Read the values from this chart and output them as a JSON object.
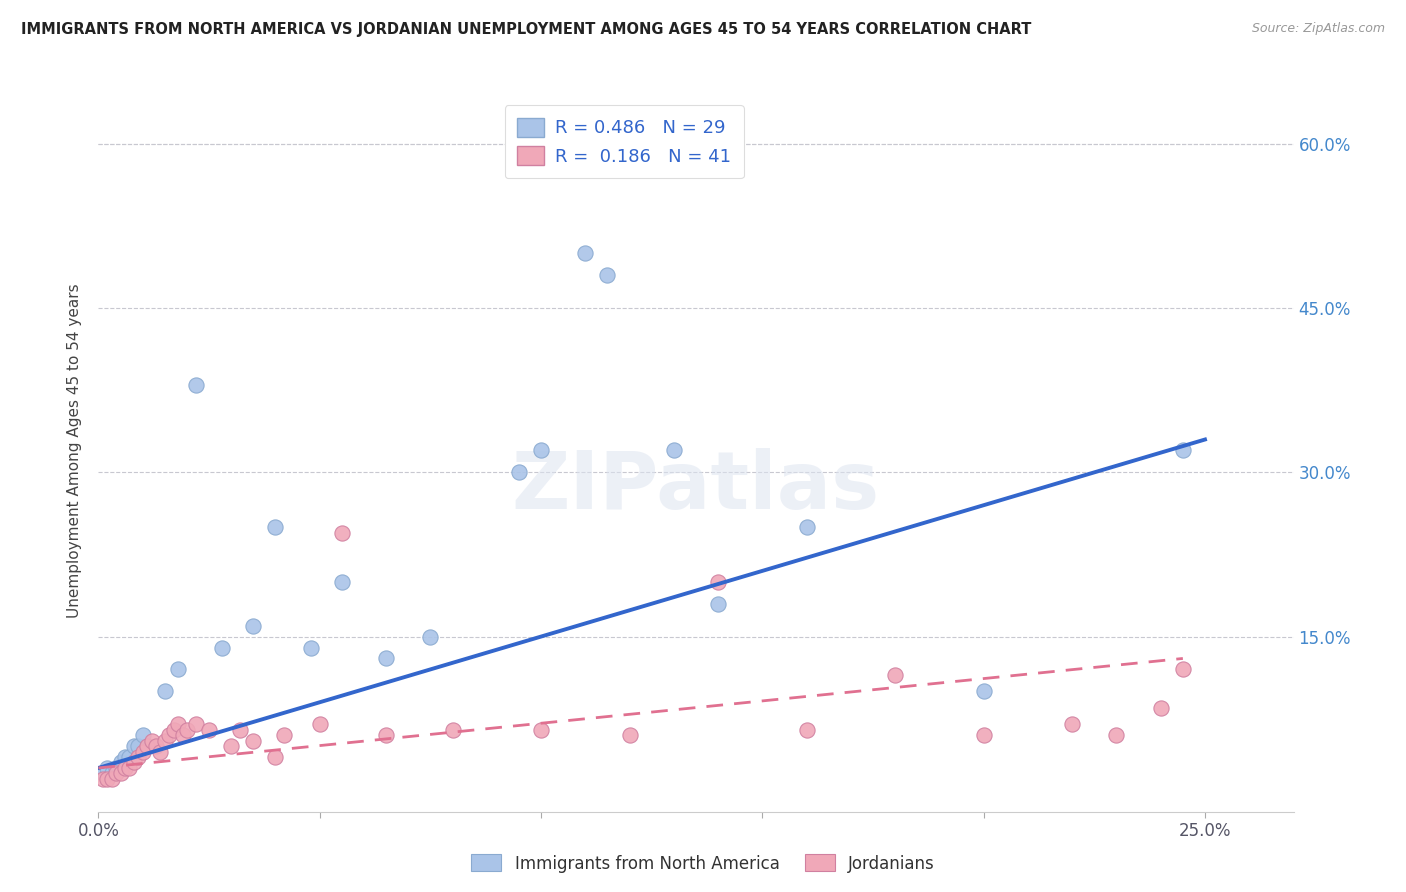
{
  "title": "IMMIGRANTS FROM NORTH AMERICA VS JORDANIAN UNEMPLOYMENT AMONG AGES 45 TO 54 YEARS CORRELATION CHART",
  "source": "Source: ZipAtlas.com",
  "ylabel": "Unemployment Among Ages 45 to 54 years",
  "xlim": [
    0.0,
    0.27
  ],
  "ylim": [
    -0.01,
    0.65
  ],
  "xticks": [
    0.0,
    0.05,
    0.1,
    0.15,
    0.2,
    0.25
  ],
  "xtick_labels": [
    "0.0%",
    "",
    "",
    "",
    "",
    "25.0%"
  ],
  "yticks_right": [
    0.0,
    0.15,
    0.3,
    0.45,
    0.6
  ],
  "ytick_labels_right": [
    "",
    "15.0%",
    "30.0%",
    "45.0%",
    "60.0%"
  ],
  "background_color": "#ffffff",
  "grid_color": "#c8c8d0",
  "watermark": "ZIPatlas",
  "legend_R1": "0.486",
  "legend_N1": "29",
  "legend_R2": "0.186",
  "legend_N2": "41",
  "series1_color": "#aac4e8",
  "series2_color": "#f0a8b8",
  "line1_color": "#3366cc",
  "line2_color": "#e07090",
  "scatter1_x": [
    0.001,
    0.002,
    0.003,
    0.004,
    0.005,
    0.006,
    0.007,
    0.008,
    0.009,
    0.01,
    0.015,
    0.018,
    0.022,
    0.028,
    0.035,
    0.04,
    0.048,
    0.055,
    0.065,
    0.075,
    0.095,
    0.1,
    0.11,
    0.115,
    0.13,
    0.14,
    0.16,
    0.2,
    0.245
  ],
  "scatter1_y": [
    0.025,
    0.03,
    0.025,
    0.03,
    0.035,
    0.04,
    0.04,
    0.05,
    0.05,
    0.06,
    0.1,
    0.12,
    0.38,
    0.14,
    0.16,
    0.25,
    0.14,
    0.2,
    0.13,
    0.15,
    0.3,
    0.32,
    0.5,
    0.48,
    0.32,
    0.18,
    0.25,
    0.1,
    0.32
  ],
  "scatter2_x": [
    0.001,
    0.002,
    0.003,
    0.004,
    0.005,
    0.006,
    0.007,
    0.008,
    0.009,
    0.01,
    0.011,
    0.012,
    0.013,
    0.014,
    0.015,
    0.016,
    0.017,
    0.018,
    0.019,
    0.02,
    0.022,
    0.025,
    0.03,
    0.032,
    0.035,
    0.04,
    0.042,
    0.05,
    0.055,
    0.065,
    0.08,
    0.1,
    0.12,
    0.14,
    0.16,
    0.18,
    0.2,
    0.22,
    0.23,
    0.24,
    0.245
  ],
  "scatter2_y": [
    0.02,
    0.02,
    0.02,
    0.025,
    0.025,
    0.03,
    0.03,
    0.035,
    0.04,
    0.045,
    0.05,
    0.055,
    0.05,
    0.045,
    0.055,
    0.06,
    0.065,
    0.07,
    0.06,
    0.065,
    0.07,
    0.065,
    0.05,
    0.065,
    0.055,
    0.04,
    0.06,
    0.07,
    0.245,
    0.06,
    0.065,
    0.065,
    0.06,
    0.2,
    0.065,
    0.115,
    0.06,
    0.07,
    0.06,
    0.085,
    0.12
  ],
  "trendline1_x": [
    0.0,
    0.25
  ],
  "trendline1_y": [
    0.03,
    0.33
  ],
  "trendline2_x": [
    0.0,
    0.245
  ],
  "trendline2_y": [
    0.03,
    0.13
  ]
}
